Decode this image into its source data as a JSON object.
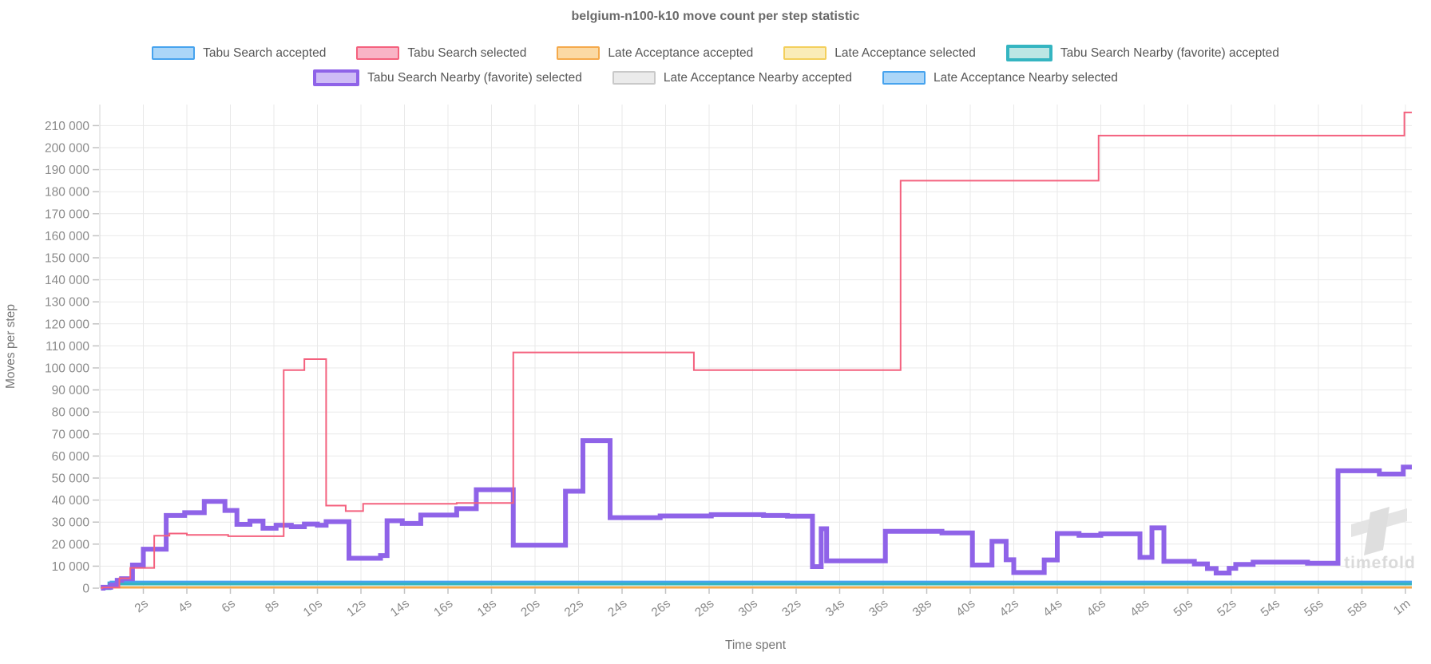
{
  "watermark": {
    "text": "timefold"
  },
  "chart_data": {
    "type": "line",
    "step": "after",
    "title": "belgium-n100-k10 move count per step statistic",
    "x_axis": {
      "title": "Time spent",
      "unit": "seconds",
      "min": 0,
      "max": 60.3,
      "grid": true,
      "ticks": [
        {
          "t": 2,
          "label": "2s"
        },
        {
          "t": 4,
          "label": "4s"
        },
        {
          "t": 6,
          "label": "6s"
        },
        {
          "t": 8,
          "label": "8s"
        },
        {
          "t": 10,
          "label": "10s"
        },
        {
          "t": 12,
          "label": "12s"
        },
        {
          "t": 14,
          "label": "14s"
        },
        {
          "t": 16,
          "label": "16s"
        },
        {
          "t": 18,
          "label": "18s"
        },
        {
          "t": 20,
          "label": "20s"
        },
        {
          "t": 22,
          "label": "22s"
        },
        {
          "t": 24,
          "label": "24s"
        },
        {
          "t": 26,
          "label": "26s"
        },
        {
          "t": 28,
          "label": "28s"
        },
        {
          "t": 30,
          "label": "30s"
        },
        {
          "t": 32,
          "label": "32s"
        },
        {
          "t": 34,
          "label": "34s"
        },
        {
          "t": 36,
          "label": "36s"
        },
        {
          "t": 38,
          "label": "38s"
        },
        {
          "t": 40,
          "label": "40s"
        },
        {
          "t": 42,
          "label": "42s"
        },
        {
          "t": 44,
          "label": "44s"
        },
        {
          "t": 46,
          "label": "46s"
        },
        {
          "t": 48,
          "label": "48s"
        },
        {
          "t": 50,
          "label": "50s"
        },
        {
          "t": 52,
          "label": "52s"
        },
        {
          "t": 54,
          "label": "54s"
        },
        {
          "t": 56,
          "label": "56s"
        },
        {
          "t": 58,
          "label": "58s"
        },
        {
          "t": 60,
          "label": "1m"
        }
      ]
    },
    "y_axis": {
      "title": "Moves per step",
      "min": 0,
      "max": 215000,
      "tick_step": 10000,
      "grid": true,
      "tick_labels": [
        "0",
        "10 000",
        "20 000",
        "30 000",
        "40 000",
        "50 000",
        "60 000",
        "70 000",
        "80 000",
        "90 000",
        "100 000",
        "110 000",
        "120 000",
        "130 000",
        "140 000",
        "150 000",
        "160 000",
        "170 000",
        "180 000",
        "190 000",
        "200 000",
        "210 000"
      ]
    },
    "legend_rows": [
      [
        "tabu_search_accepted",
        "tabu_search_selected",
        "late_acceptance_accepted",
        "late_acceptance_selected",
        "tabu_search_nearby_accepted"
      ],
      [
        "tabu_search_nearby_selected",
        "late_acceptance_nearby_accepted",
        "late_acceptance_nearby_selected"
      ]
    ],
    "series": [
      {
        "id": "late_acceptance_nearby_accepted",
        "label": "Late Acceptance Nearby accepted",
        "color": "#c9c9c9",
        "fill": "#ebebeb",
        "line_width": 2,
        "favorite": false,
        "points": [
          [
            0.1,
            0
          ],
          [
            0.35,
            650
          ],
          [
            60.3,
            650
          ]
        ]
      },
      {
        "id": "late_acceptance_selected",
        "label": "Late Acceptance selected",
        "color": "#f3cf5c",
        "fill": "#faecb8",
        "line_width": 2,
        "favorite": false,
        "points": [
          [
            0.1,
            0
          ],
          [
            0.35,
            500
          ],
          [
            60.3,
            500
          ]
        ]
      },
      {
        "id": "late_acceptance_accepted",
        "label": "Late Acceptance accepted",
        "color": "#f5a94b",
        "fill": "#fbd9a4",
        "line_width": 2.5,
        "favorite": false,
        "points": [
          [
            0.1,
            0
          ],
          [
            0.35,
            250
          ],
          [
            60.3,
            250
          ]
        ]
      },
      {
        "id": "tabu_search_accepted",
        "label": "Tabu Search accepted",
        "color": "#47a3ee",
        "fill": "#abd6f8",
        "line_width": 2.5,
        "favorite": false,
        "points": [
          [
            0.1,
            0
          ],
          [
            0.4,
            2600
          ],
          [
            60.3,
            2600
          ]
        ]
      },
      {
        "id": "tabu_search_nearby_accepted",
        "label": "Tabu Search Nearby (favorite) accepted",
        "color": "#35b5c1",
        "fill": "#bce6e4",
        "line_width": 4.5,
        "favorite": true,
        "points": [
          [
            0.1,
            0
          ],
          [
            0.45,
            2100
          ],
          [
            60.3,
            2100
          ]
        ]
      },
      {
        "id": "late_acceptance_nearby_selected",
        "label": "Late Acceptance Nearby selected",
        "color": "#47a3ee",
        "fill": "#abd6f8",
        "line_width": 2.5,
        "favorite": false,
        "points": [
          [
            0.15,
            0
          ],
          [
            0.5,
            2950
          ],
          [
            60.3,
            2950
          ]
        ]
      },
      {
        "id": "tabu_search_nearby_selected",
        "label": "Tabu Search Nearby (favorite) selected",
        "color": "#8f63e8",
        "fill": "#cfbcf6",
        "line_width": 6,
        "favorite": true,
        "points": [
          [
            0.05,
            0
          ],
          [
            0.15,
            400
          ],
          [
            0.5,
            1500
          ],
          [
            0.8,
            3600
          ],
          [
            1.0,
            4300
          ],
          [
            1.5,
            10500
          ],
          [
            2.0,
            17700
          ],
          [
            3.05,
            33000
          ],
          [
            3.9,
            34300
          ],
          [
            4.8,
            39400
          ],
          [
            5.75,
            35300
          ],
          [
            6.3,
            29000
          ],
          [
            6.9,
            30500
          ],
          [
            7.5,
            27200
          ],
          [
            8.1,
            28600
          ],
          [
            8.8,
            27900
          ],
          [
            9.4,
            29100
          ],
          [
            10.0,
            28600
          ],
          [
            10.4,
            30200
          ],
          [
            11.45,
            13600
          ],
          [
            12.9,
            14800
          ],
          [
            13.2,
            30600
          ],
          [
            13.9,
            29400
          ],
          [
            14.75,
            33200
          ],
          [
            16.4,
            36100
          ],
          [
            17.3,
            44700
          ],
          [
            19.0,
            19500
          ],
          [
            21.4,
            44000
          ],
          [
            22.2,
            67000
          ],
          [
            23.45,
            32000
          ],
          [
            25.75,
            32800
          ],
          [
            28.1,
            33400
          ],
          [
            30.5,
            33000
          ],
          [
            31.6,
            32700
          ],
          [
            32.75,
            9800
          ],
          [
            33.15,
            27000
          ],
          [
            33.4,
            12400
          ],
          [
            36.1,
            25800
          ],
          [
            38.7,
            25100
          ],
          [
            40.1,
            10500
          ],
          [
            41.0,
            21300
          ],
          [
            41.65,
            12900
          ],
          [
            42.0,
            7100
          ],
          [
            43.4,
            12800
          ],
          [
            44.0,
            24800
          ],
          [
            45.0,
            24000
          ],
          [
            46.0,
            24700
          ],
          [
            47.8,
            14000
          ],
          [
            48.35,
            27400
          ],
          [
            48.9,
            12200
          ],
          [
            50.3,
            11000
          ],
          [
            50.9,
            8900
          ],
          [
            51.3,
            6900
          ],
          [
            51.9,
            9000
          ],
          [
            52.2,
            10800
          ],
          [
            53.0,
            11800
          ],
          [
            55.5,
            11300
          ],
          [
            56.9,
            53300
          ],
          [
            58.8,
            51800
          ],
          [
            59.9,
            55000
          ],
          [
            60.3,
            55000
          ]
        ]
      },
      {
        "id": "tabu_search_selected",
        "label": "Tabu Search selected",
        "color": "#f4617e",
        "fill": "#f9b4c6",
        "line_width": 2,
        "favorite": false,
        "points": [
          [
            0.05,
            0
          ],
          [
            0.1,
            300
          ],
          [
            0.9,
            4500
          ],
          [
            1.4,
            9200
          ],
          [
            2.5,
            23800
          ],
          [
            3.2,
            24800
          ],
          [
            4.0,
            24200
          ],
          [
            5.9,
            23600
          ],
          [
            8.45,
            99000
          ],
          [
            9.4,
            104000
          ],
          [
            10.4,
            37500
          ],
          [
            11.3,
            35000
          ],
          [
            12.1,
            38300
          ],
          [
            16.4,
            38700
          ],
          [
            19.0,
            107000
          ],
          [
            27.3,
            99000
          ],
          [
            36.8,
            185000
          ],
          [
            45.9,
            205500
          ],
          [
            59.95,
            216000
          ],
          [
            60.3,
            216000
          ]
        ]
      }
    ]
  }
}
